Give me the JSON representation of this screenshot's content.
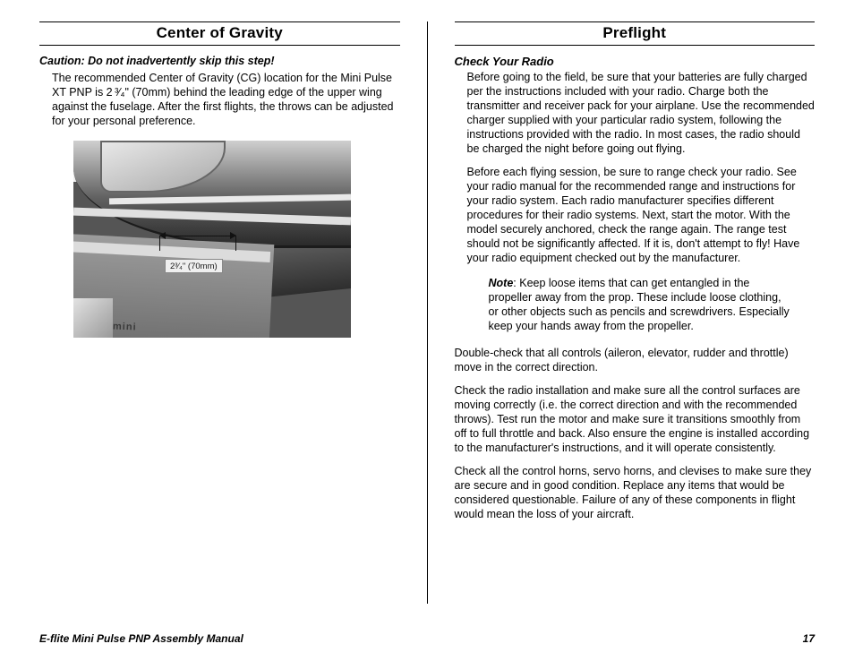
{
  "left": {
    "title": "Center of Gravity",
    "caution": "Caution: Do not inadvertently skip this step!",
    "paragraph": "The recommended Center of Gravity (CG) location for the Mini Pulse XT PNP is 2 ³⁄₄\" (70mm) behind the leading edge of the upper wing against the fuselage. After the first flights, the throws can be adjusted for your personal preference.",
    "figure": {
      "cg_label": "2³⁄₄\" (70mm)",
      "decal_text": "mini"
    }
  },
  "right": {
    "title": "Preflight",
    "subhead": "Check Your Radio",
    "p1": "Before going to the field, be sure that your batteries are fully charged per the instructions included with your radio. Charge both the transmitter and receiver pack for your airplane. Use the recommended charger supplied with your particular radio system, following the instructions provided with the radio. In most cases, the radio should be charged the night before going out flying.",
    "p2": "Before each flying session, be sure to range check your radio. See your radio manual for the recommended range and instructions for your radio system. Each radio manufacturer specifies different procedures for their radio systems. Next, start the motor. With the model securely anchored, check the range again. The range test should not be significantly affected. If it is, don't attempt to fly! Have your radio equipment checked out by the manufacturer.",
    "note_label": "Note",
    "note_text": ": Keep loose items that can get entangled in the propeller away from the prop. These include loose clothing, or other objects such as pencils and screwdrivers. Especially keep your hands away from the propeller.",
    "p3": "Double-check that all controls (aileron, elevator, rudder and throttle) move in the correct direction.",
    "p4": "Check the radio installation and make sure all the control surfaces are moving correctly (i.e. the correct direction and with the recommended throws). Test run the motor and make sure it transitions smoothly from off to full throttle and back. Also ensure the engine is installed according to the manufacturer's instructions, and it will operate consistently.",
    "p5": "Check all the control horns, servo horns, and clevises to make sure they are secure and in good condition. Replace any items that would be considered questionable. Failure of any of these components in flight would mean the loss of your aircraft."
  },
  "footer": {
    "manual": "E-flite Mini Pulse PNP Assembly Manual",
    "page": "17"
  }
}
